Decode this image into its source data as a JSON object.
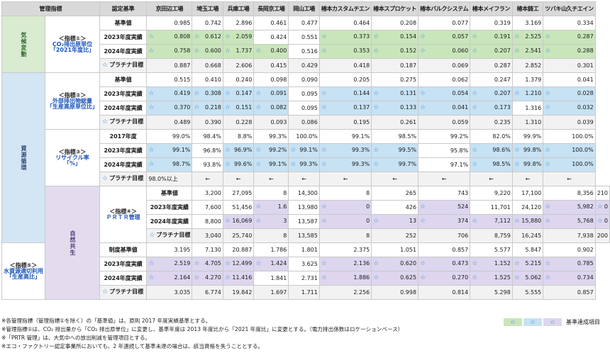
{
  "header": {
    "indicator": "管理指標",
    "criteria": "認定基準",
    "plants": [
      "京田辺工場",
      "埼玉工場",
      "兵庫工場",
      "長岡京工場",
      "岡山工場",
      "椿本カスタムチエン",
      "椿本スプロケット",
      "椿本バルクシステム",
      "椿本メイフラン",
      "椿本鋳工",
      "ツバキ山久チエイン"
    ]
  },
  "categories": {
    "climate": "気候変動",
    "resource": "資源循環",
    "nature": "自然共生"
  },
  "groups": [
    {
      "title": "＜指標①＞",
      "sub": "CO₂排出原単位",
      "unit": "「2021年度比」",
      "rows": [
        {
          "label": "基準値",
          "vals": [
            "0.985",
            "0.742",
            "2.896",
            "0.461",
            "0.477",
            "0.464",
            "0.208",
            "0.077",
            "0.319",
            "3.169",
            "0.334"
          ]
        },
        {
          "label": "2023年度実績",
          "vals": [
            "0.808",
            "0.612",
            "2.059",
            "0.424",
            "0.551",
            "0.373",
            "0.154",
            "0.057",
            "0.191",
            "2.525",
            "0.287"
          ]
        },
        {
          "label": "2024年度実績",
          "vals": [
            "0.758",
            "0.600",
            "1.737",
            "0.400",
            "0.516",
            "0.353",
            "0.152",
            "0.060",
            "0.207",
            "2.541",
            "0.288"
          ]
        },
        {
          "label": "プラチナ目標",
          "vals": [
            "0.887",
            "0.668",
            "2.606",
            "0.415",
            "0.429",
            "0.418",
            "0.187",
            "0.069",
            "0.287",
            "2.852",
            "0.301"
          ]
        }
      ]
    },
    {
      "title": "＜指標②＞",
      "sub": "外部排出物総量",
      "unit": "「生産高原単位比」",
      "rows": [
        {
          "label": "基準値",
          "vals": [
            "0.515",
            "0.410",
            "0.240",
            "0.098",
            "0.090",
            "0.205",
            "0.275",
            "0.062",
            "0.247",
            "1.379",
            "0.041"
          ]
        },
        {
          "label": "2023年度実績",
          "vals": [
            "0.419",
            "0.308",
            "0.147",
            "0.091",
            "0.095",
            "0.144",
            "0.131",
            "0.054",
            "0.207",
            "1.210",
            "0.028"
          ]
        },
        {
          "label": "2024年度実績",
          "vals": [
            "0.370",
            "0.218",
            "0.151",
            "0.082",
            "0.095",
            "0.137",
            "0.133",
            "0.041",
            "0.173",
            "1.316",
            "0.032"
          ]
        },
        {
          "label": "プラチナ目標",
          "vals": [
            "0.489",
            "0.390",
            "0.228",
            "0.093",
            "0.086",
            "0.195",
            "0.261",
            "0.059",
            "0.235",
            "1.310",
            "0.039"
          ]
        }
      ]
    },
    {
      "title": "＜指標③＞",
      "sub": "リサイクル率",
      "unit": "「%」",
      "rows": [
        {
          "label": "2017年度",
          "vals": [
            "99.0%",
            "98.4%",
            "8.8%",
            "99.3%",
            "100.0%",
            "99.1%",
            "98.5%",
            "99.2%",
            "82.0%",
            "99.9%",
            "100.0%"
          ]
        },
        {
          "label": "2023年度実績",
          "vals": [
            "99.1%",
            "96.8%",
            "96.9%",
            "99.2%",
            "99.1%",
            "99.3%",
            "99.5%",
            "95.8%",
            "98.6%",
            "99.8%",
            "100.0%"
          ]
        },
        {
          "label": "2024年度実績",
          "vals": [
            "98.7%",
            "93.8%",
            "99.6%",
            "99.1%",
            "99.3%",
            "99.3%",
            "99.7%",
            "97.1%",
            "98.5%",
            "99.8%",
            "100.0%"
          ]
        },
        {
          "label": "プラチナ目標",
          "vals": [
            "98.0%以上",
            "←",
            "←",
            "←",
            "←",
            "←",
            "←",
            "←",
            "←",
            "←",
            "←"
          ]
        }
      ]
    },
    {
      "title": "＜指標④＞",
      "sub": "ＰＲＴＲ管理",
      "unit": "",
      "rows": [
        {
          "label": "基準値",
          "vals": [
            "3,200",
            "27,095",
            "8",
            "14,300",
            "8",
            "265",
            "743",
            "9,220",
            "17,100",
            "8,356",
            "210"
          ]
        },
        {
          "label": "2023年度実績",
          "vals": [
            "7,600",
            "51,456",
            "1.6",
            "13,980",
            "0",
            "426",
            "524",
            "11,701",
            "24,120",
            "5,982",
            "0"
          ]
        },
        {
          "label": "2024年度実績",
          "vals": [
            "8,800",
            "16,069",
            "3",
            "13,587",
            "0",
            "13",
            "374",
            "7,112",
            "15,880",
            "5,768",
            "0"
          ]
        },
        {
          "label": "プラチナ目標",
          "vals": [
            "3,040",
            "25,740",
            "8",
            "13,585",
            "8",
            "252",
            "706",
            "8,759",
            "16,245",
            "7,938",
            "200"
          ]
        }
      ]
    },
    {
      "title": "＜指標⑤＞",
      "sub": "水資源適切利用",
      "unit": "「生産高比」",
      "rows": [
        {
          "label": "制度基準値",
          "vals": [
            "3.195",
            "7.130",
            "20.887",
            "1.786",
            "1.801",
            "2.375",
            "1.051",
            "0.857",
            "5.577",
            "5.847",
            "0.902"
          ]
        },
        {
          "label": "2023年度実績",
          "vals": [
            "2.519",
            "4.705",
            "12.499",
            "1.424",
            "3.625",
            "2.136",
            "0.620",
            "0.473",
            "1.152",
            "5.215",
            "0.785"
          ]
        },
        {
          "label": "2024年度実績",
          "vals": [
            "2.164",
            "4.270",
            "11.416",
            "1.841",
            "2.731",
            "1.886",
            "0.625",
            "0.270",
            "1.525",
            "5.062",
            "0.734"
          ]
        },
        {
          "label": "プラチナ目標",
          "vals": [
            "3.035",
            "6.774",
            "19.842",
            "1.697",
            "1.711",
            "2.256",
            "0.998",
            "0.814",
            "5.298",
            "5.555",
            "0.857"
          ]
        }
      ]
    }
  ],
  "achieved": {
    "0-1": [
      1,
      1,
      1,
      0,
      0,
      1,
      1,
      1,
      1,
      1,
      1
    ],
    "0-2": [
      1,
      1,
      1,
      1,
      0,
      1,
      1,
      1,
      1,
      1,
      1
    ],
    "1-1": [
      1,
      1,
      1,
      1,
      0,
      1,
      1,
      1,
      1,
      1,
      1
    ],
    "1-2": [
      1,
      1,
      1,
      1,
      0,
      1,
      1,
      1,
      1,
      0,
      1
    ],
    "2-1": [
      1,
      0,
      1,
      1,
      1,
      1,
      1,
      0,
      1,
      1,
      1
    ],
    "2-2": [
      1,
      0,
      1,
      1,
      1,
      1,
      1,
      0,
      1,
      1,
      1
    ],
    "3-1": [
      0,
      0,
      1,
      0,
      1,
      0,
      1,
      0,
      0,
      1,
      1
    ],
    "3-2": [
      0,
      1,
      1,
      0,
      1,
      1,
      1,
      1,
      1,
      1,
      1
    ],
    "4-1": [
      1,
      1,
      1,
      1,
      0,
      1,
      1,
      1,
      1,
      1,
      1
    ],
    "4-2": [
      1,
      1,
      1,
      0,
      0,
      1,
      1,
      1,
      1,
      1,
      1
    ]
  },
  "star": "☆",
  "notes": [
    "※各管理指標（管理指標①を除く）の「基準値」は、原則 2017 年度実績基準とする。",
    "※管理指標①は、CO₂ 排出量から「CO₂ 排出原単位」に変更し、基準年度は 2013 年度比から「2021 年度比」に変更とする。（電力排出係数はロケーションベース）",
    "※「PRTR 管理」は、大気中への放出削減を管理項目とする。",
    "※エコ・ファクトリー認定事業所においても、2 年連続して基準未達の場合は、該当資格を失うこととする。"
  ],
  "legend": {
    "label": "基準達成項目"
  },
  "colors": {
    "climate": "#c9e6bb",
    "resource": "#c7e2f3",
    "nature": "#ddd6ee"
  }
}
